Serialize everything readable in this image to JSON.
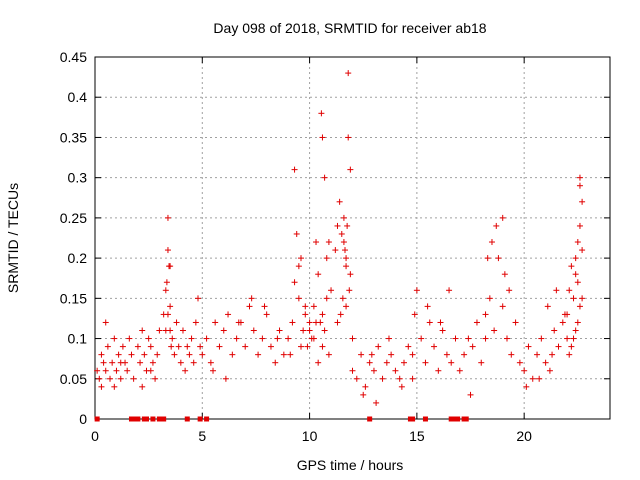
{
  "chart_data": {
    "type": "scatter",
    "title": "Day 098 of 2018, SRMTID for receiver ab18",
    "xlabel": "GPS time / hours",
    "ylabel": "SRMTID / TECUs",
    "xlim": [
      0,
      24
    ],
    "ylim": [
      0,
      0.45
    ],
    "xticks": [
      0,
      5,
      10,
      15,
      20
    ],
    "xtick_labels": [
      "0",
      "5",
      "10",
      "15",
      "20"
    ],
    "yticks": [
      0,
      0.05,
      0.1,
      0.15,
      0.2,
      0.25,
      0.3,
      0.35,
      0.4,
      0.45
    ],
    "ytick_labels": [
      "0",
      "0.05",
      "0.1",
      "0.15",
      "0.2",
      "0.25",
      "0.3",
      "0.35",
      "0.4",
      "0.45"
    ],
    "grid": true,
    "marker": "plus",
    "color": "#e00000",
    "series": [
      {
        "name": "SRMTID",
        "x": [
          0.1,
          0.2,
          0.3,
          0.3,
          0.4,
          0.5,
          0.6,
          0.7,
          0.8,
          0.9,
          1.0,
          1.1,
          1.2,
          1.3,
          1.4,
          1.5,
          1.6,
          1.7,
          1.8,
          1.2,
          0.9,
          0.5,
          2.0,
          2.1,
          2.2,
          2.3,
          2.4,
          2.5,
          2.6,
          2.7,
          2.8,
          2.9,
          3.0,
          2.2,
          2.6,
          3.2,
          3.3,
          3.3,
          3.4,
          3.4,
          3.5,
          3.5,
          3.6,
          3.7,
          3.8,
          3.9,
          4.0,
          4.1,
          4.2,
          4.3,
          4.4,
          4.5,
          4.6,
          4.7,
          4.8,
          4.9,
          3.35,
          3.45,
          3.4,
          3.5,
          3.55,
          5.0,
          5.2,
          5.4,
          5.6,
          5.8,
          6.0,
          6.2,
          6.4,
          6.6,
          6.8,
          7.0,
          7.2,
          7.4,
          7.6,
          7.8,
          8.0,
          8.2,
          8.4,
          8.6,
          8.8,
          5.5,
          6.1,
          6.7,
          7.3,
          7.9,
          8.5,
          9.0,
          9.1,
          9.2,
          9.3,
          9.4,
          9.5,
          9.6,
          9.7,
          9.8,
          9.9,
          10.0,
          10.1,
          10.2,
          10.3,
          10.4,
          10.5,
          10.6,
          10.7,
          10.8,
          10.9,
          9.5,
          9.8,
          10.2,
          10.6,
          9.3,
          9.6,
          10.0,
          10.4,
          10.55,
          10.6,
          10.7,
          10.9,
          11.0,
          10.8,
          10.3,
          11.2,
          11.3,
          11.4,
          11.5,
          11.6,
          11.6,
          11.7,
          11.7,
          11.8,
          11.8,
          11.9,
          11.9,
          11.75,
          11.85,
          11.65,
          11.55,
          11.45,
          12.0,
          11.3,
          11.7,
          12.0,
          12.2,
          12.4,
          12.6,
          12.8,
          13.0,
          13.2,
          13.4,
          13.6,
          13.8,
          14.0,
          14.2,
          14.4,
          14.6,
          12.5,
          13.1,
          13.7,
          14.3,
          12.9,
          14.8,
          14.9,
          15.0,
          15.2,
          15.4,
          15.6,
          15.8,
          16.0,
          16.2,
          16.4,
          16.6,
          16.8,
          14.8,
          15.5,
          16.1,
          16.5,
          17.0,
          17.2,
          17.4,
          17.6,
          17.8,
          18.0,
          18.2,
          18.4,
          18.6,
          18.8,
          19.0,
          19.2,
          19.4,
          19.6,
          18.3,
          18.5,
          18.7,
          19.0,
          19.1,
          19.3,
          18.2,
          17.5,
          19.8,
          20.0,
          20.2,
          20.4,
          20.6,
          20.8,
          21.0,
          21.2,
          21.4,
          21.6,
          21.8,
          22.0,
          20.1,
          20.7,
          21.3,
          21.9,
          21.5,
          21.1,
          22.0,
          22.1,
          22.2,
          22.3,
          22.4,
          22.5,
          22.6,
          22.6,
          22.7,
          22.7,
          22.4,
          22.5,
          22.3,
          22.6,
          22.5,
          22.7,
          22.2,
          22.4,
          22.1,
          22.6
        ],
        "y": [
          0.06,
          0.05,
          0.08,
          0.04,
          0.07,
          0.06,
          0.09,
          0.05,
          0.07,
          0.1,
          0.06,
          0.08,
          0.05,
          0.09,
          0.07,
          0.06,
          0.1,
          0.08,
          0.05,
          0.07,
          0.04,
          0.12,
          0.09,
          0.07,
          0.11,
          0.08,
          0.06,
          0.1,
          0.09,
          0.07,
          0.05,
          0.08,
          0.11,
          0.04,
          0.06,
          0.13,
          0.11,
          0.16,
          0.21,
          0.25,
          0.19,
          0.14,
          0.1,
          0.08,
          0.12,
          0.09,
          0.07,
          0.11,
          0.06,
          0.09,
          0.08,
          0.1,
          0.07,
          0.12,
          0.15,
          0.09,
          0.17,
          0.19,
          0.13,
          0.11,
          0.09,
          0.08,
          0.1,
          0.07,
          0.12,
          0.09,
          0.11,
          0.13,
          0.08,
          0.1,
          0.12,
          0.09,
          0.14,
          0.11,
          0.08,
          0.1,
          0.13,
          0.09,
          0.07,
          0.11,
          0.08,
          0.06,
          0.05,
          0.12,
          0.15,
          0.14,
          0.1,
          0.1,
          0.08,
          0.12,
          0.31,
          0.23,
          0.15,
          0.2,
          0.11,
          0.13,
          0.09,
          0.12,
          0.1,
          0.14,
          0.22,
          0.18,
          0.12,
          0.09,
          0.11,
          0.15,
          0.08,
          0.19,
          0.14,
          0.1,
          0.13,
          0.17,
          0.09,
          0.11,
          0.07,
          0.38,
          0.35,
          0.3,
          0.22,
          0.16,
          0.2,
          0.12,
          0.21,
          0.24,
          0.27,
          0.23,
          0.25,
          0.22,
          0.2,
          0.19,
          0.43,
          0.35,
          0.31,
          0.18,
          0.24,
          0.16,
          0.21,
          0.15,
          0.13,
          0.1,
          0.12,
          0.14,
          0.06,
          0.05,
          0.08,
          0.04,
          0.07,
          0.06,
          0.09,
          0.05,
          0.07,
          0.08,
          0.06,
          0.05,
          0.07,
          0.09,
          0.03,
          0.02,
          0.1,
          0.04,
          0.08,
          0.08,
          0.13,
          0.16,
          0.1,
          0.07,
          0.12,
          0.09,
          0.06,
          0.11,
          0.08,
          0.07,
          0.1,
          0.05,
          0.14,
          0.12,
          0.16,
          0.06,
          0.08,
          0.1,
          0.09,
          0.12,
          0.07,
          0.13,
          0.15,
          0.11,
          0.2,
          0.14,
          0.1,
          0.08,
          0.12,
          0.2,
          0.22,
          0.24,
          0.25,
          0.18,
          0.16,
          0.1,
          0.03,
          0.07,
          0.06,
          0.09,
          0.05,
          0.08,
          0.1,
          0.07,
          0.06,
          0.11,
          0.09,
          0.12,
          0.1,
          0.04,
          0.05,
          0.08,
          0.13,
          0.16,
          0.14,
          0.13,
          0.16,
          0.19,
          0.15,
          0.2,
          0.22,
          0.24,
          0.3,
          0.27,
          0.21,
          0.18,
          0.12,
          0.1,
          0.14,
          0.17,
          0.15,
          0.09,
          0.11,
          0.08,
          0.29
        ],
        "baseline_x": [
          0.1,
          1.7,
          1.8,
          1.9,
          2.0,
          2.3,
          2.4,
          2.7,
          3.0,
          3.1,
          3.2,
          4.3,
          4.9,
          5.2,
          12.8,
          14.7,
          14.8,
          15.4,
          16.6,
          16.7,
          16.8,
          16.9,
          17.2,
          17.3
        ]
      }
    ]
  }
}
